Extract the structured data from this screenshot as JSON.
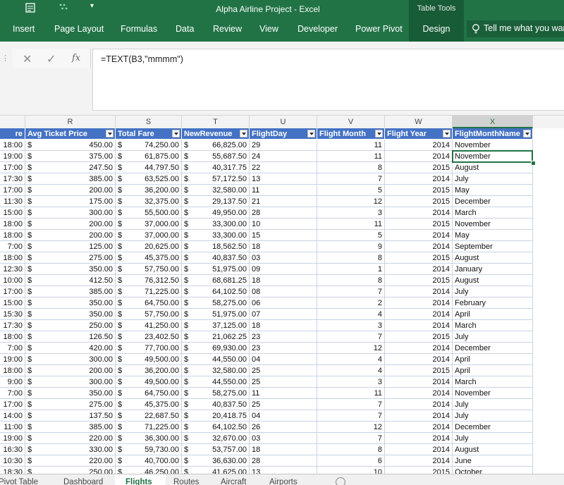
{
  "window": {
    "title": "Alpha Airline Project - Excel",
    "contextual_group": "Table Tools"
  },
  "ribbon": {
    "tabs": [
      "Insert",
      "Page Layout",
      "Formulas",
      "Data",
      "Review",
      "View",
      "Developer",
      "Power Pivot"
    ],
    "active_tab": "Design",
    "tell_me": "Tell me what you want to do"
  },
  "formula_bar": {
    "cancel_icon": "cancel-x-icon",
    "enter_icon": "enter-check-icon",
    "fx_label": "fx",
    "formula": "=TEXT(B3,\"mmmm\")"
  },
  "columns": [
    "R",
    "S",
    "T",
    "U",
    "V",
    "W",
    "X"
  ],
  "selected_column": "X",
  "table": {
    "headers": [
      "re",
      "Avg Ticket Price",
      "Total Fare",
      "NewRevenue",
      "FlightDay",
      "Flight Month",
      "Flight Year",
      "FlightMonthName"
    ],
    "currency_symbol": "$",
    "rows": [
      [
        "18:00",
        "450.00",
        "74,250.00",
        "66,825.00",
        "29",
        "11",
        "2014",
        "November"
      ],
      [
        "19:00",
        "375.00",
        "61,875.00",
        "55,687.50",
        "24",
        "11",
        "2014",
        "November"
      ],
      [
        "17:00",
        "247.50",
        "44,797.50",
        "40,317.75",
        "22",
        "8",
        "2015",
        "August"
      ],
      [
        "17:30",
        "385.00",
        "63,525.00",
        "57,172.50",
        "13",
        "7",
        "2014",
        "July"
      ],
      [
        "17:00",
        "200.00",
        "36,200.00",
        "32,580.00",
        "11",
        "5",
        "2015",
        "May"
      ],
      [
        "11:30",
        "175.00",
        "32,375.00",
        "29,137.50",
        "21",
        "12",
        "2015",
        "December"
      ],
      [
        "15:00",
        "300.00",
        "55,500.00",
        "49,950.00",
        "28",
        "3",
        "2014",
        "March"
      ],
      [
        "18:00",
        "200.00",
        "37,000.00",
        "33,300.00",
        "10",
        "11",
        "2015",
        "November"
      ],
      [
        "18:00",
        "200.00",
        "37,000.00",
        "33,300.00",
        "15",
        "5",
        "2014",
        "May"
      ],
      [
        "7:00",
        "125.00",
        "20,625.00",
        "18,562.50",
        "18",
        "9",
        "2014",
        "September"
      ],
      [
        "18:00",
        "275.00",
        "45,375.00",
        "40,837.50",
        "03",
        "8",
        "2015",
        "August"
      ],
      [
        "12:30",
        "350.00",
        "57,750.00",
        "51,975.00",
        "09",
        "1",
        "2014",
        "January"
      ],
      [
        "10:00",
        "412.50",
        "76,312.50",
        "68,681.25",
        "18",
        "8",
        "2015",
        "August"
      ],
      [
        "17:00",
        "385.00",
        "71,225.00",
        "64,102.50",
        "08",
        "7",
        "2014",
        "July"
      ],
      [
        "15:00",
        "350.00",
        "64,750.00",
        "58,275.00",
        "06",
        "2",
        "2014",
        "February"
      ],
      [
        "15:30",
        "350.00",
        "57,750.00",
        "51,975.00",
        "07",
        "4",
        "2014",
        "April"
      ],
      [
        "17:30",
        "250.00",
        "41,250.00",
        "37,125.00",
        "18",
        "3",
        "2014",
        "March"
      ],
      [
        "18:00",
        "126.50",
        "23,402.50",
        "21,062.25",
        "23",
        "7",
        "2015",
        "July"
      ],
      [
        "7:00",
        "420.00",
        "77,700.00",
        "69,930.00",
        "23",
        "12",
        "2014",
        "December"
      ],
      [
        "19:00",
        "300.00",
        "49,500.00",
        "44,550.00",
        "04",
        "4",
        "2014",
        "April"
      ],
      [
        "18:00",
        "200.00",
        "36,200.00",
        "32,580.00",
        "25",
        "4",
        "2015",
        "April"
      ],
      [
        "9:00",
        "300.00",
        "49,500.00",
        "44,550.00",
        "25",
        "3",
        "2014",
        "March"
      ],
      [
        "7:00",
        "350.00",
        "64,750.00",
        "58,275.00",
        "11",
        "11",
        "2014",
        "November"
      ],
      [
        "17:00",
        "275.00",
        "45,375.00",
        "40,837.50",
        "25",
        "7",
        "2014",
        "July"
      ],
      [
        "14:00",
        "137.50",
        "22,687.50",
        "20,418.75",
        "04",
        "7",
        "2014",
        "July"
      ],
      [
        "11:00",
        "385.00",
        "71,225.00",
        "64,102.50",
        "26",
        "12",
        "2014",
        "December"
      ],
      [
        "19:00",
        "220.00",
        "36,300.00",
        "32,670.00",
        "03",
        "7",
        "2014",
        "July"
      ],
      [
        "16:30",
        "330.00",
        "59,730.00",
        "53,757.00",
        "18",
        "8",
        "2014",
        "August"
      ],
      [
        "10:30",
        "220.00",
        "40,700.00",
        "36,630.00",
        "28",
        "6",
        "2014",
        "June"
      ],
      [
        "18:30",
        "250.00",
        "46,250.00",
        "41,625.00",
        "13",
        "10",
        "2015",
        "October"
      ]
    ]
  },
  "sheet_tabs": {
    "tabs": [
      "Pivot Table",
      "Dashboard",
      "Flights",
      "Routes",
      "Aircraft",
      "Airports"
    ],
    "active": "Flights"
  },
  "colors": {
    "excel_green": "#217346",
    "contextual_green": "#185c37",
    "table_header_blue": "#4472c4"
  }
}
